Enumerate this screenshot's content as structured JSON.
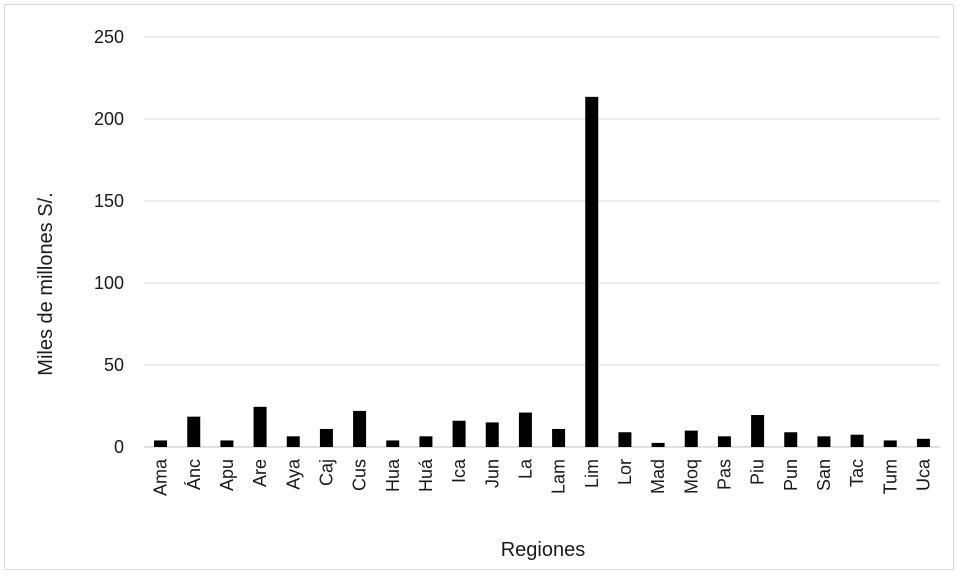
{
  "chart_data": {
    "type": "bar",
    "title": "",
    "xlabel": "Regiones",
    "ylabel": "Miles de millones S/.",
    "ylim": [
      0,
      250
    ],
    "yticks": [
      0,
      50,
      100,
      150,
      200,
      250
    ],
    "grid": true,
    "legend": "none",
    "bar_color": "#000000",
    "categories": [
      "Ama",
      "Ánc",
      "Apu",
      "Are",
      "Aya",
      "Caj",
      "Cus",
      "Hua",
      "Huá",
      "Ica",
      "Jun",
      "La",
      "Lam",
      "Lim",
      "Lor",
      "Mad",
      "Moq",
      "Pas",
      "Piu",
      "Pun",
      "San",
      "Tac",
      "Tum",
      "Uca"
    ],
    "values": [
      4,
      18.5,
      4,
      24.5,
      6.5,
      11,
      22,
      4,
      6.5,
      16,
      15,
      21,
      11,
      213.5,
      9,
      2.5,
      10,
      6.5,
      19.5,
      9,
      6.5,
      7.5,
      4,
      5
    ]
  }
}
